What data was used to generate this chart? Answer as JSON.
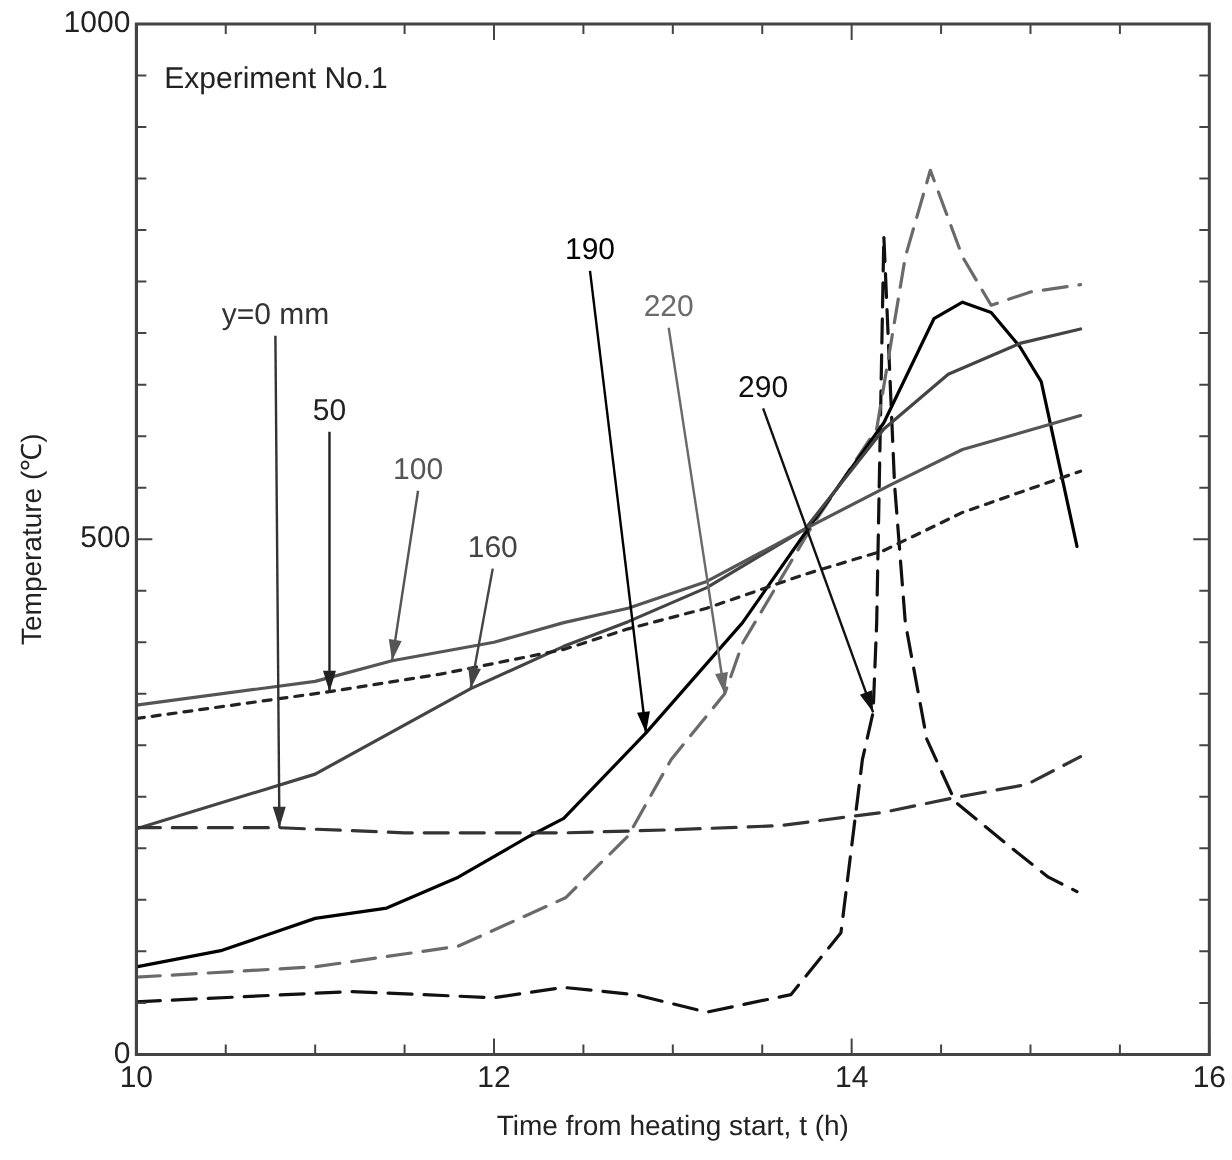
{
  "chart_data": {
    "type": "line",
    "xlabel": "Time from heating start, t (h)",
    "ylabel": "Temperature (℃)",
    "annotations": [
      "Experiment No.1"
    ],
    "xlim": [
      10,
      16
    ],
    "xticks": [
      10,
      {
        "value": 10.5,
        "label": null
      },
      {
        "value": 11,
        "label": null
      },
      {
        "value": 11.5,
        "label": null
      },
      12,
      {
        "value": 12.5,
        "label": null
      },
      {
        "value": 13,
        "label": null
      },
      {
        "value": 13.5,
        "label": null
      },
      14,
      {
        "value": 14.5,
        "label": null
      },
      {
        "value": 15,
        "label": null
      },
      {
        "value": 15.5,
        "label": null
      },
      16
    ],
    "ylim": [
      0,
      1000
    ],
    "yticks": [
      0,
      {
        "value": 50,
        "label": null
      },
      {
        "value": 100,
        "label": null
      },
      {
        "value": 150,
        "label": null
      },
      {
        "value": 200,
        "label": null
      },
      {
        "value": 250,
        "label": null
      },
      {
        "value": 300,
        "label": null
      },
      {
        "value": 350,
        "label": null
      },
      {
        "value": 400,
        "label": null
      },
      {
        "value": 450,
        "label": null
      },
      500,
      {
        "value": 550,
        "label": null
      },
      {
        "value": 600,
        "label": null
      },
      {
        "value": 650,
        "label": null
      },
      {
        "value": 700,
        "label": null
      },
      {
        "value": 750,
        "label": null
      },
      {
        "value": 800,
        "label": null
      },
      {
        "value": 850,
        "label": null
      },
      {
        "value": 900,
        "label": null
      },
      {
        "value": 950,
        "label": null
      },
      1000
    ],
    "grid": false,
    "legend": false,
    "marker": "none",
    "series": [
      {
        "name": "y=0 mm",
        "color": "#333333",
        "line_style": "dashed",
        "x": [
          10,
          10.8,
          11.5,
          12.39,
          13.0,
          13.6,
          14.18,
          14.6,
          14.98,
          15.28
        ],
        "values": [
          220,
          220,
          215,
          215,
          218,
          222,
          235,
          250,
          262,
          289
        ]
      },
      {
        "name": "50",
        "color": "#222222",
        "line_style": "dotted",
        "x": [
          10,
          11.08,
          11.7,
          12.39,
          12.75,
          13.19,
          13.74,
          14.18,
          14.62,
          15.28
        ],
        "values": [
          326,
          352,
          369,
          393,
          413,
          433,
          466,
          489,
          526,
          566
        ]
      },
      {
        "name": "100",
        "color": "#555555",
        "line_style": "solid",
        "x": [
          10,
          11.0,
          11.43,
          12.0,
          12.39,
          12.75,
          13.19,
          13.74,
          14.22,
          14.62,
          15.28
        ],
        "values": [
          339,
          362,
          382,
          400,
          419,
          433,
          459,
          510,
          553,
          587,
          620
        ]
      },
      {
        "name": "160",
        "color": "#444444",
        "line_style": "solid",
        "x": [
          10,
          11.0,
          11.87,
          12.39,
          12.75,
          13.19,
          13.74,
          14.18,
          14.54,
          14.94,
          15.28
        ],
        "values": [
          219,
          272,
          355,
          396,
          420,
          453,
          510,
          607,
          660,
          690,
          704
        ]
      },
      {
        "name": "190",
        "color": "#000000",
        "line_style": "solid",
        "x": [
          10,
          10.48,
          11.0,
          11.4,
          11.8,
          12.2,
          12.39,
          12.85,
          13.39,
          13.78,
          14.18,
          14.46,
          14.62,
          14.78,
          14.94,
          15.06,
          15.26
        ],
        "values": [
          85,
          101,
          132,
          142,
          172,
          212,
          229,
          312,
          419,
          516,
          613,
          714,
          730,
          720,
          687,
          653,
          493
        ]
      },
      {
        "name": "220",
        "color": "#6a6a6a",
        "line_style": "dashed",
        "x": [
          10,
          11.0,
          11.8,
          12.4,
          12.75,
          12.99,
          13.29,
          13.39,
          13.78,
          14.14,
          14.3,
          14.44,
          14.62,
          14.78,
          15.0,
          15.28
        ],
        "values": [
          75,
          85,
          105,
          152,
          212,
          286,
          350,
          399,
          513,
          607,
          774,
          858,
          774,
          727,
          740,
          747
        ]
      },
      {
        "name": "290",
        "color": "#111111",
        "line_style": "dashed",
        "x": [
          10,
          11.2,
          12.0,
          12.39,
          12.79,
          13.19,
          13.66,
          13.94,
          14.06,
          14.12,
          14.14,
          14.18,
          14.24,
          14.3,
          14.42,
          14.58,
          14.86,
          15.1,
          15.26
        ],
        "values": [
          51,
          61,
          55,
          65,
          58,
          41,
          58,
          118,
          286,
          332,
          419,
          794,
          553,
          419,
          306,
          245,
          205,
          172,
          158
        ]
      }
    ]
  }
}
